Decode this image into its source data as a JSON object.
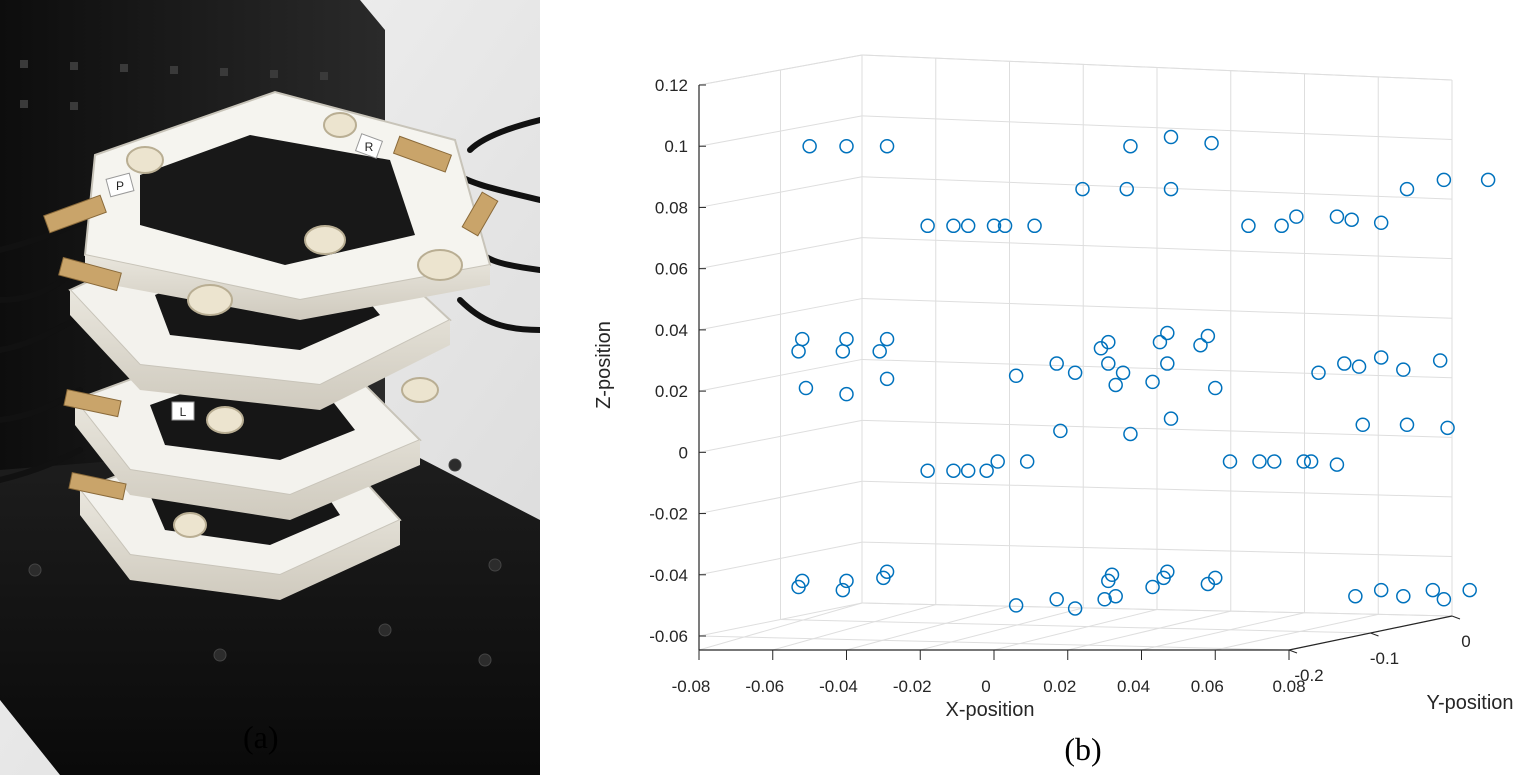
{
  "photo": {
    "label": "(a)",
    "sticker_labels": [
      "P",
      "R",
      "L"
    ],
    "colors": {
      "background_dark": "#161616",
      "wall_light": "#e6e6e6",
      "plastic": "#f2f1ec",
      "pillar": "#1a1a1a"
    }
  },
  "chart_data": {
    "type": "scatter",
    "panel_label": "(b)",
    "title": "",
    "xlabel": "X-position",
    "ylabel": "Y-position",
    "zlabel": "Z-position",
    "xlim": [
      -0.08,
      0.08
    ],
    "ylim": [
      -0.2,
      0
    ],
    "zlim": [
      -0.06,
      0.12
    ],
    "x_ticks": [
      "-0.08",
      "-0.06",
      "-0.04",
      "-0.02",
      "0",
      "0.02",
      "0.04",
      "0.06",
      "0.08"
    ],
    "y_ticks": [
      "-0.2",
      "-0.1",
      "0"
    ],
    "z_ticks": [
      "-0.06",
      "-0.04",
      "-0.02",
      "0",
      "0.02",
      "0.04",
      "0.06",
      "0.08",
      "0.1",
      "0.12"
    ],
    "grid": true,
    "marker": "open-circle",
    "marker_color": "#0072bd",
    "series": [
      {
        "points_projected": [
          [
            -0.05,
            0.1
          ],
          [
            -0.04,
            0.1
          ],
          [
            -0.029,
            0.1
          ],
          [
            -0.018,
            0.074
          ],
          [
            -0.011,
            0.074
          ],
          [
            -0.007,
            0.074
          ],
          [
            0,
            0.074
          ],
          [
            0.003,
            0.074
          ],
          [
            0.011,
            0.074
          ],
          [
            0.024,
            0.086
          ],
          [
            0.037,
            0.1
          ],
          [
            0.036,
            0.086
          ],
          [
            0.048,
            0.103
          ],
          [
            0.048,
            0.086
          ],
          [
            0.059,
            0.101
          ],
          [
            0.069,
            0.074
          ],
          [
            0.078,
            0.074
          ],
          [
            0.082,
            0.077
          ],
          [
            0.093,
            0.077
          ],
          [
            0.097,
            0.076
          ],
          [
            0.105,
            0.075
          ],
          [
            0.112,
            0.086
          ],
          [
            0.122,
            0.089
          ],
          [
            0.134,
            0.089
          ],
          [
            -0.052,
            0.037
          ],
          [
            -0.053,
            0.033
          ],
          [
            -0.051,
            0.021
          ],
          [
            -0.04,
            0.037
          ],
          [
            -0.041,
            0.033
          ],
          [
            -0.04,
            0.019
          ],
          [
            -0.029,
            0.037
          ],
          [
            -0.031,
            0.033
          ],
          [
            -0.029,
            0.024
          ],
          [
            0.006,
            0.025
          ],
          [
            0.017,
            0.029
          ],
          [
            0.022,
            0.026
          ],
          [
            0.029,
            0.034
          ],
          [
            0.031,
            0.036
          ],
          [
            0.031,
            0.029
          ],
          [
            0.033,
            0.022
          ],
          [
            0.035,
            0.026
          ],
          [
            0.043,
            0.023
          ],
          [
            0.045,
            0.036
          ],
          [
            0.047,
            0.039
          ],
          [
            0.047,
            0.029
          ],
          [
            0.056,
            0.035
          ],
          [
            0.058,
            0.038
          ],
          [
            0.06,
            0.021
          ],
          [
            0.018,
            0.007
          ],
          [
            0.037,
            0.006
          ],
          [
            0.048,
            0.011
          ],
          [
            0.088,
            0.026
          ],
          [
            0.095,
            0.029
          ],
          [
            0.099,
            0.028
          ],
          [
            0.105,
            0.031
          ],
          [
            0.111,
            0.027
          ],
          [
            0.121,
            0.03
          ],
          [
            0.1,
            0.009
          ],
          [
            0.112,
            0.009
          ],
          [
            0.123,
            0.008
          ],
          [
            -0.018,
            -0.006
          ],
          [
            -0.011,
            -0.006
          ],
          [
            -0.007,
            -0.006
          ],
          [
            -0.002,
            -0.006
          ],
          [
            0.001,
            -0.003
          ],
          [
            0.009,
            -0.003
          ],
          [
            0.064,
            -0.003
          ],
          [
            0.072,
            -0.003
          ],
          [
            0.076,
            -0.003
          ],
          [
            0.084,
            -0.003
          ],
          [
            0.086,
            -0.003
          ],
          [
            0.093,
            -0.004
          ],
          [
            -0.053,
            -0.044
          ],
          [
            -0.052,
            -0.042
          ],
          [
            -0.041,
            -0.045
          ],
          [
            -0.04,
            -0.042
          ],
          [
            -0.03,
            -0.041
          ],
          [
            -0.029,
            -0.039
          ],
          [
            0.006,
            -0.05
          ],
          [
            0.017,
            -0.048
          ],
          [
            0.022,
            -0.051
          ],
          [
            0.03,
            -0.048
          ],
          [
            0.033,
            -0.047
          ],
          [
            0.031,
            -0.042
          ],
          [
            0.032,
            -0.04
          ],
          [
            0.043,
            -0.044
          ],
          [
            0.046,
            -0.041
          ],
          [
            0.047,
            -0.039
          ],
          [
            0.058,
            -0.043
          ],
          [
            0.06,
            -0.041
          ],
          [
            0.098,
            -0.047
          ],
          [
            0.105,
            -0.045
          ],
          [
            0.111,
            -0.047
          ],
          [
            0.119,
            -0.045
          ],
          [
            0.122,
            -0.048
          ],
          [
            0.129,
            -0.045
          ]
        ]
      }
    ]
  }
}
